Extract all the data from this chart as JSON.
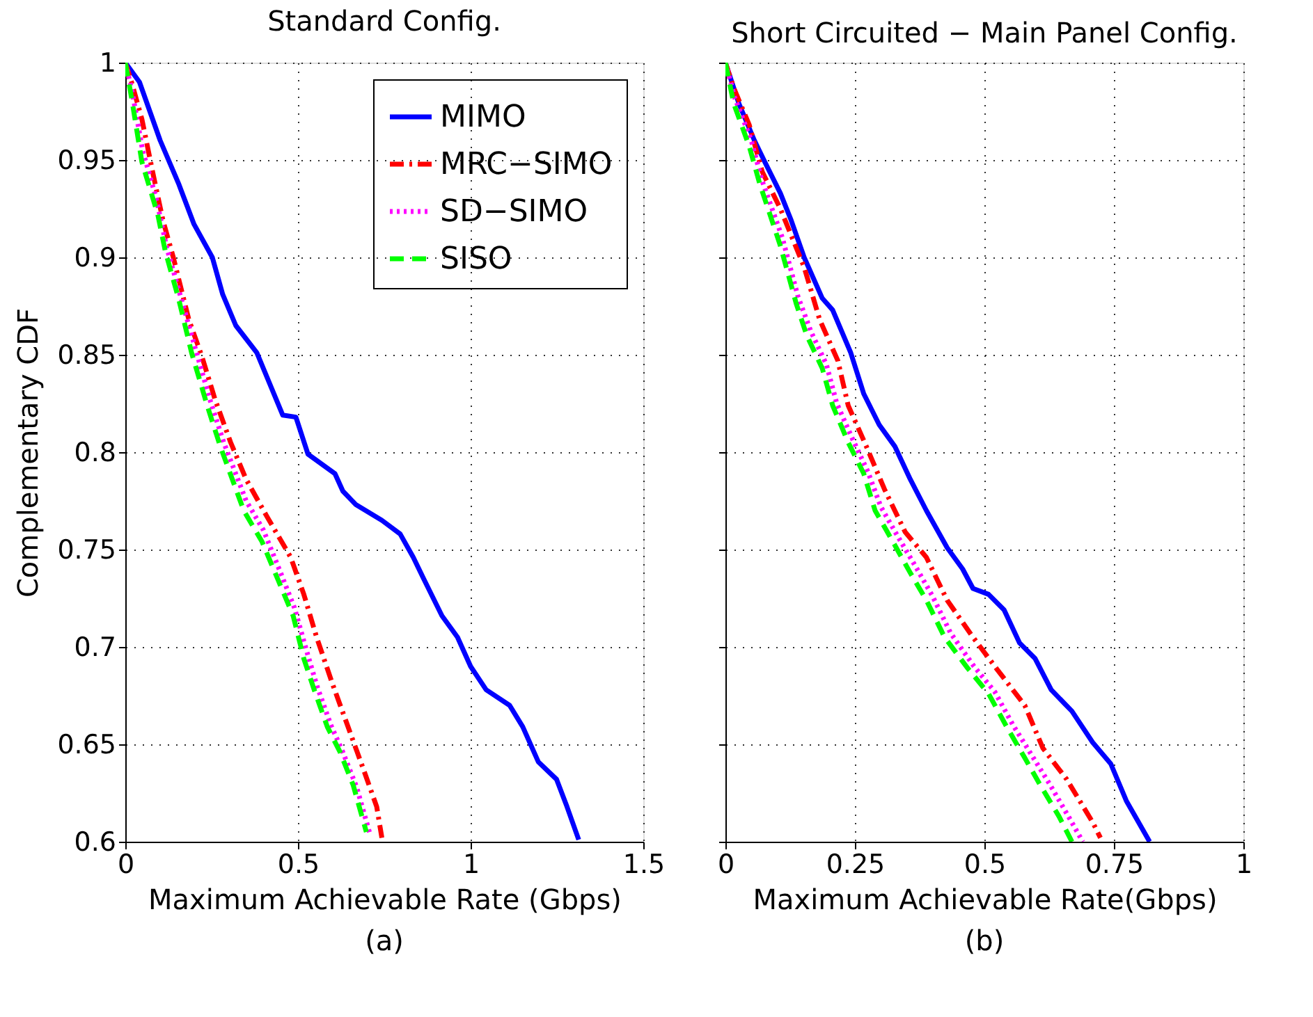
{
  "chart_data": [
    {
      "type": "line",
      "title": "Standard Config.",
      "xlabel": "Maximum Achievable Rate (Gbps)",
      "ylabel": "Complementary CDF",
      "annotations": [
        "(a)"
      ],
      "xlim": [
        0,
        1.5
      ],
      "xticks": [
        0,
        0.5,
        1,
        1.5
      ],
      "ylim": [
        0.6,
        1
      ],
      "yticks": [
        0.6,
        0.65,
        0.7,
        0.75,
        0.8,
        0.85,
        0.9,
        0.95,
        1
      ],
      "grid": true,
      "legend": "top right",
      "series": [
        {
          "name": "MIMO",
          "color": "#0000ff",
          "line_style": "solid",
          "x": [
            0,
            0.041,
            0.101,
            0.154,
            0.199,
            0.252,
            0.282,
            0.32,
            0.381,
            0.456,
            0.494,
            0.529,
            0.607,
            0.63,
            0.668,
            0.743,
            0.796,
            0.834,
            0.864,
            0.917,
            0.962,
            1.0,
            1.045,
            1.113,
            1.151,
            1.196,
            1.249,
            1.279,
            1.313
          ],
          "values": [
            1,
            0.99,
            0.96,
            0.938,
            0.917,
            0.9,
            0.881,
            0.865,
            0.851,
            0.819,
            0.818,
            0.799,
            0.789,
            0.78,
            0.773,
            0.765,
            0.758,
            0.746,
            0.735,
            0.716,
            0.705,
            0.69,
            0.678,
            0.67,
            0.659,
            0.641,
            0.632,
            0.618,
            0.601
          ]
        },
        {
          "name": "MRC−SIMO",
          "color": "#ff0000",
          "line_style": "dashdot",
          "x": [
            0,
            0.018,
            0.048,
            0.079,
            0.109,
            0.139,
            0.184,
            0.222,
            0.26,
            0.305,
            0.35,
            0.41,
            0.479,
            0.517,
            0.554,
            0.6,
            0.645,
            0.69,
            0.728,
            0.743
          ],
          "values": [
            1,
            0.99,
            0.971,
            0.944,
            0.919,
            0.9,
            0.868,
            0.849,
            0.827,
            0.805,
            0.786,
            0.767,
            0.746,
            0.727,
            0.705,
            0.681,
            0.659,
            0.637,
            0.618,
            0.602
          ]
        },
        {
          "name": "SD−SIMO",
          "color": "#ff00ff",
          "line_style": "dotted",
          "x": [
            0,
            0.02,
            0.05,
            0.09,
            0.12,
            0.16,
            0.2,
            0.245,
            0.285,
            0.35,
            0.4,
            0.45,
            0.49,
            0.525,
            0.555,
            0.595,
            0.63,
            0.67,
            0.71
          ],
          "values": [
            1,
            0.985,
            0.955,
            0.93,
            0.905,
            0.88,
            0.855,
            0.827,
            0.805,
            0.775,
            0.76,
            0.738,
            0.72,
            0.698,
            0.68,
            0.66,
            0.646,
            0.628,
            0.603
          ]
        },
        {
          "name": "SISO",
          "color": "#00ff00",
          "line_style": "dashed",
          "x": [
            0,
            0.018,
            0.048,
            0.094,
            0.116,
            0.154,
            0.192,
            0.237,
            0.275,
            0.343,
            0.396,
            0.441,
            0.486,
            0.517,
            0.547,
            0.585,
            0.622,
            0.66,
            0.698
          ],
          "values": [
            1,
            0.982,
            0.949,
            0.922,
            0.903,
            0.879,
            0.851,
            0.824,
            0.803,
            0.77,
            0.754,
            0.735,
            0.716,
            0.694,
            0.678,
            0.659,
            0.646,
            0.629,
            0.605
          ]
        }
      ]
    },
    {
      "type": "line",
      "title": "Short Circuited − Main Panel Config.",
      "xlabel": "Maximum Achievable Rate(Gbps)",
      "annotations": [
        "(b)"
      ],
      "xlim": [
        0,
        1
      ],
      "xticks": [
        0,
        0.25,
        0.5,
        0.75,
        1
      ],
      "ylim": [
        0.6,
        1
      ],
      "yticks": [
        0.6,
        0.65,
        0.7,
        0.75,
        0.8,
        0.85,
        0.9,
        0.95,
        1
      ],
      "grid": true,
      "tick_labels": "x",
      "series": [
        {
          "color": "#0000ff",
          "line_style": "solid",
          "x": [
            0,
            0.026,
            0.056,
            0.076,
            0.106,
            0.127,
            0.152,
            0.187,
            0.207,
            0.242,
            0.267,
            0.297,
            0.327,
            0.357,
            0.388,
            0.428,
            0.458,
            0.478,
            0.508,
            0.538,
            0.568,
            0.598,
            0.629,
            0.669,
            0.709,
            0.744,
            0.774,
            0.819
          ],
          "values": [
            1,
            0.979,
            0.96,
            0.949,
            0.933,
            0.919,
            0.9,
            0.879,
            0.873,
            0.851,
            0.83,
            0.814,
            0.803,
            0.786,
            0.77,
            0.751,
            0.74,
            0.73,
            0.727,
            0.719,
            0.702,
            0.694,
            0.678,
            0.667,
            0.651,
            0.64,
            0.621,
            0.6
          ]
        },
        {
          "color": "#ff0000",
          "line_style": "dashdot",
          "x": [
            0,
            0.016,
            0.046,
            0.071,
            0.106,
            0.152,
            0.182,
            0.217,
            0.237,
            0.272,
            0.307,
            0.347,
            0.388,
            0.428,
            0.478,
            0.523,
            0.578,
            0.613,
            0.659,
            0.709,
            0.724
          ],
          "values": [
            1,
            0.987,
            0.968,
            0.944,
            0.925,
            0.895,
            0.868,
            0.847,
            0.824,
            0.803,
            0.781,
            0.759,
            0.746,
            0.724,
            0.705,
            0.689,
            0.67,
            0.648,
            0.632,
            0.61,
            0.602
          ]
        },
        {
          "color": "#ff00ff",
          "line_style": "dotted",
          "x": [
            0,
            0.018,
            0.05,
            0.07,
            0.11,
            0.14,
            0.165,
            0.195,
            0.215,
            0.245,
            0.275,
            0.3,
            0.33,
            0.37,
            0.4,
            0.435,
            0.48,
            0.52,
            0.555,
            0.59,
            0.625,
            0.66,
            0.69
          ],
          "values": [
            1,
            0.982,
            0.96,
            0.94,
            0.91,
            0.88,
            0.862,
            0.845,
            0.825,
            0.807,
            0.79,
            0.772,
            0.758,
            0.74,
            0.726,
            0.707,
            0.69,
            0.677,
            0.66,
            0.645,
            0.63,
            0.614,
            0.6
          ]
        },
        {
          "color": "#00ff00",
          "line_style": "dashed",
          "x": [
            0,
            0.016,
            0.046,
            0.066,
            0.106,
            0.137,
            0.157,
            0.187,
            0.207,
            0.237,
            0.267,
            0.289,
            0.317,
            0.357,
            0.388,
            0.423,
            0.468,
            0.508,
            0.543,
            0.578,
            0.608,
            0.644,
            0.669
          ],
          "values": [
            1,
            0.979,
            0.957,
            0.938,
            0.906,
            0.876,
            0.86,
            0.843,
            0.824,
            0.805,
            0.789,
            0.77,
            0.757,
            0.738,
            0.724,
            0.705,
            0.689,
            0.676,
            0.659,
            0.643,
            0.629,
            0.613,
            0.6
          ]
        }
      ]
    }
  ]
}
